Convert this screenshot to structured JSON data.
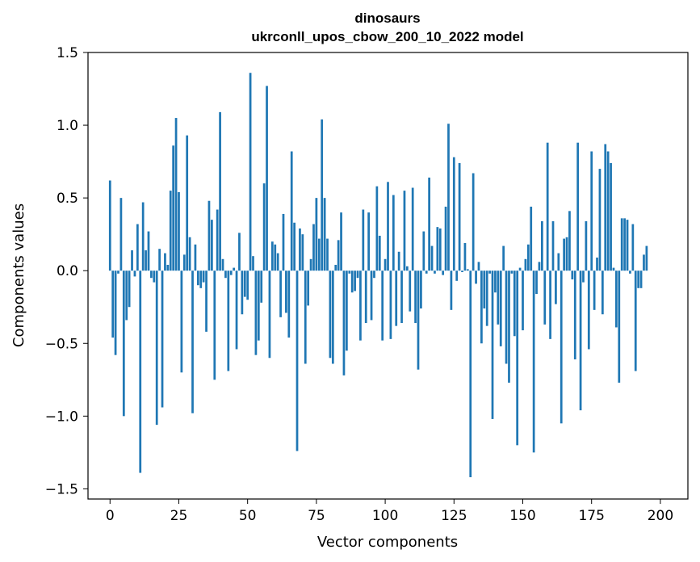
{
  "chart_data": {
    "type": "bar",
    "title": "dinosaurs",
    "subtitle": "ukrconll_upos_cbow_200_10_2022 model",
    "xlabel": "Vector components",
    "ylabel": "Components values",
    "xlim": [
      -8,
      210
    ],
    "ylim": [
      -1.57,
      1.5
    ],
    "xticks": [
      0,
      25,
      50,
      75,
      100,
      125,
      150,
      175,
      200
    ],
    "yticks": [
      -1.5,
      -1.0,
      -0.5,
      0.0,
      0.5,
      1.0,
      1.5
    ],
    "ytick_labels": [
      "−1.5",
      "−1.0",
      "−0.5",
      "0.0",
      "0.5",
      "1.0",
      "1.5"
    ],
    "bar_color": "#1f77b4",
    "grid": false,
    "values": [
      0.62,
      -0.46,
      -0.58,
      -0.02,
      0.5,
      -1.0,
      -0.34,
      -0.25,
      0.14,
      -0.04,
      0.32,
      -1.39,
      0.47,
      0.14,
      0.27,
      -0.05,
      -0.08,
      -1.06,
      0.15,
      -0.94,
      0.12,
      0.04,
      0.55,
      0.86,
      1.05,
      0.54,
      -0.7,
      0.11,
      0.93,
      0.23,
      -0.98,
      0.18,
      -0.1,
      -0.12,
      -0.08,
      -0.42,
      0.48,
      0.35,
      -0.75,
      0.42,
      1.09,
      0.08,
      -0.05,
      -0.69,
      -0.03,
      0.02,
      -0.54,
      0.26,
      -0.3,
      -0.18,
      -0.2,
      1.36,
      0.1,
      -0.58,
      -0.48,
      -0.22,
      0.6,
      1.27,
      -0.6,
      0.2,
      0.18,
      0.12,
      -0.32,
      0.39,
      -0.29,
      -0.46,
      0.82,
      0.33,
      -1.24,
      0.29,
      0.25,
      -0.64,
      -0.24,
      0.08,
      0.32,
      0.5,
      0.22,
      1.04,
      0.5,
      0.22,
      -0.6,
      -0.64,
      0.04,
      0.21,
      0.4,
      -0.72,
      -0.55,
      -0.02,
      -0.15,
      -0.14,
      -0.05,
      -0.48,
      0.42,
      -0.36,
      0.4,
      -0.34,
      -0.05,
      0.58,
      0.24,
      -0.48,
      0.08,
      0.61,
      -0.47,
      0.52,
      -0.38,
      0.13,
      -0.36,
      0.55,
      0.03,
      -0.28,
      0.57,
      -0.36,
      -0.68,
      -0.26,
      0.27,
      -0.02,
      0.64,
      0.17,
      -0.02,
      0.3,
      0.29,
      -0.03,
      0.44,
      1.01,
      -0.27,
      0.78,
      -0.07,
      0.74,
      -0.01,
      0.19,
      0.01,
      -1.42,
      0.67,
      -0.09,
      0.06,
      -0.5,
      -0.26,
      -0.38,
      -0.02,
      -1.02,
      -0.15,
      -0.37,
      -0.52,
      0.17,
      -0.64,
      -0.77,
      -0.02,
      -0.45,
      -1.2,
      0.02,
      -0.41,
      0.08,
      0.18,
      0.44,
      -1.25,
      -0.16,
      0.06,
      0.34,
      -0.37,
      0.88,
      -0.47,
      0.34,
      -0.23,
      0.12,
      -1.05,
      0.22,
      0.23,
      0.41,
      -0.06,
      -0.61,
      0.88,
      -0.96,
      -0.08,
      0.34,
      -0.54,
      0.82,
      -0.27,
      0.09,
      0.7,
      -0.3,
      0.87,
      0.82,
      0.74,
      0.02,
      -0.39,
      -0.77,
      0.36,
      0.36,
      0.35,
      -0.02,
      0.32,
      -0.69,
      -0.12,
      -0.12,
      0.11,
      0.17
    ]
  }
}
